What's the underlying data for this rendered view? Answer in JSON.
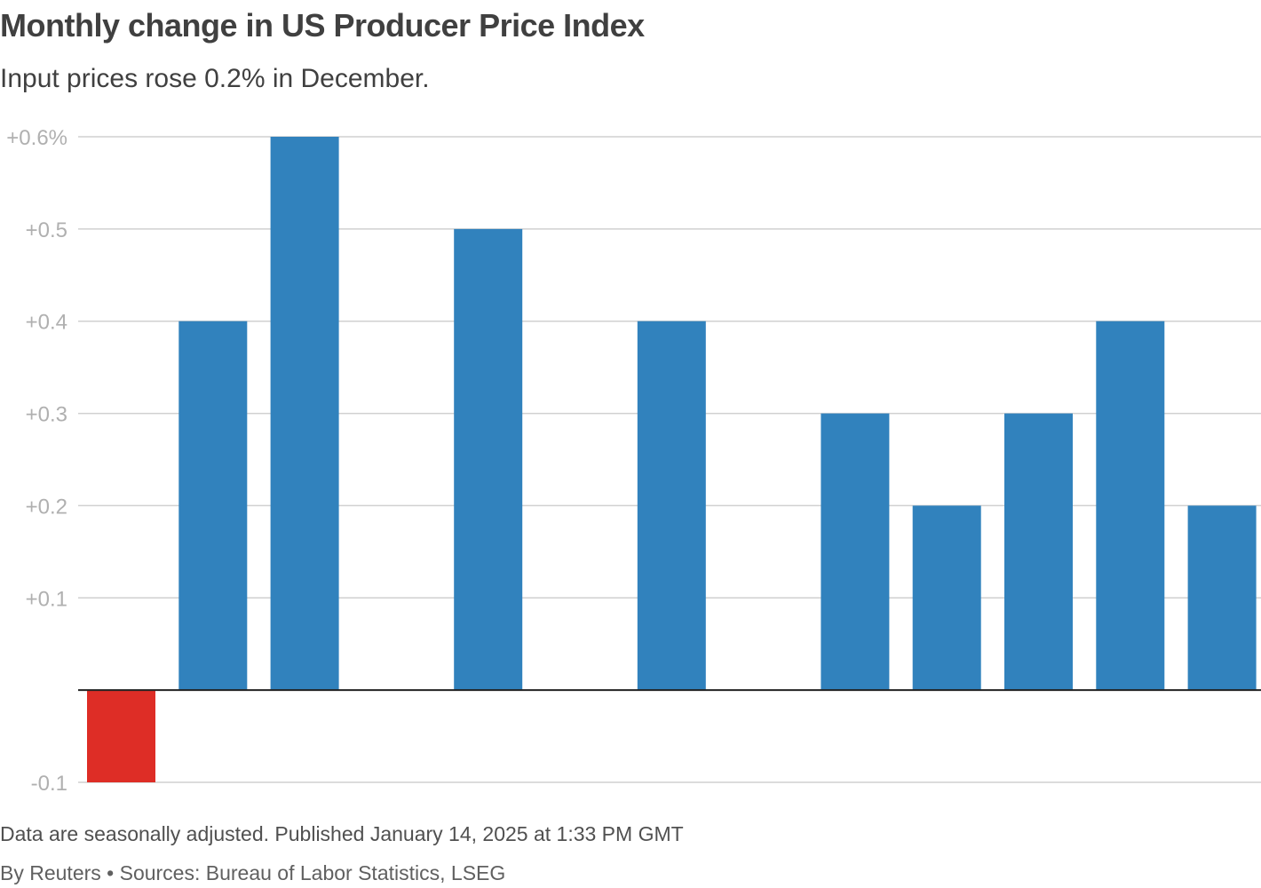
{
  "colors": {
    "positive": "#3182bd",
    "negative": "#de2d26",
    "grid": "#d0d0d0",
    "zero_line": "#222222",
    "tick_text": "#b0b0b0"
  },
  "footer": {
    "note": "Data are seasonally adjusted. Published January 14, 2025 at 1:33 PM GMT",
    "byline": "By Reuters • Sources: Bureau of Labor Statistics, LSEG"
  },
  "chart_data": {
    "type": "bar",
    "title": "Monthly change in US Producer Price Index",
    "subtitle": "Input prices rose 0.2% in December.",
    "xlabel": "",
    "ylabel": "",
    "values": [
      -0.1,
      0.4,
      0.6,
      0.0,
      0.5,
      0.0,
      0.4,
      0.0,
      0.3,
      0.2,
      0.3,
      0.4,
      0.2
    ],
    "ylim": [
      -0.1,
      0.6
    ],
    "yticks": [
      {
        "value": 0.6,
        "label": "+0.6%"
      },
      {
        "value": 0.5,
        "label": "+0.5"
      },
      {
        "value": 0.4,
        "label": "+0.4"
      },
      {
        "value": 0.3,
        "label": "+0.3"
      },
      {
        "value": 0.2,
        "label": "+0.2"
      },
      {
        "value": 0.1,
        "label": "+0.1"
      },
      {
        "value": -0.1,
        "label": "-0.1"
      }
    ],
    "grid": true,
    "legend": "none"
  }
}
